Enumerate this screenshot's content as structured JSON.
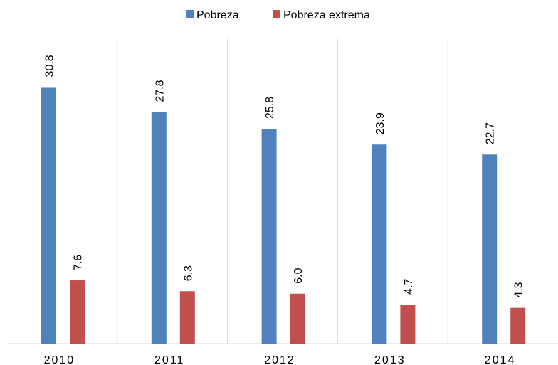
{
  "chart_data": {
    "type": "bar",
    "categories": [
      "2010",
      "2011",
      "2012",
      "2013",
      "2014"
    ],
    "series": [
      {
        "name": "Pobreza",
        "color": "#4f81bd",
        "values": [
          30.8,
          27.8,
          25.8,
          23.9,
          22.7
        ]
      },
      {
        "name": "Pobreza extrema",
        "color": "#c0504d",
        "values": [
          7.6,
          6.3,
          6.0,
          4.7,
          4.3
        ],
        "value_labels": [
          "7.6",
          "6.3",
          "6.0",
          "4.7",
          "4.3"
        ]
      }
    ],
    "ylim": [
      0,
      34
    ],
    "legend": "top"
  }
}
